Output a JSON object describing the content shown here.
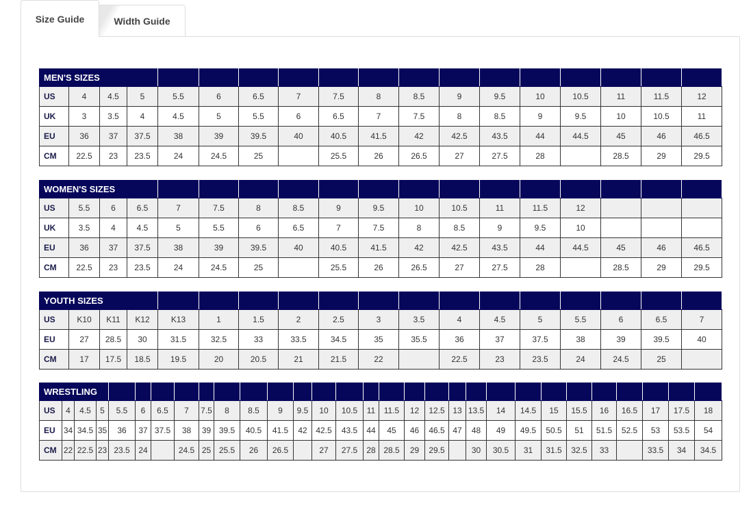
{
  "tabs": [
    {
      "label": "Size Guide",
      "active": true
    },
    {
      "label": "Width Guide",
      "active": false
    }
  ],
  "colors": {
    "header_bg": "#06065a",
    "stripe": "#efefef"
  },
  "tables": [
    {
      "title": "MEN'S SIZES",
      "title_span": 4,
      "rows": [
        {
          "label": "US",
          "values": [
            "4",
            "4.5",
            "5",
            "5.5",
            "6",
            "6.5",
            "7",
            "7.5",
            "8",
            "8.5",
            "9",
            "9.5",
            "10",
            "10.5",
            "11",
            "11.5",
            "12"
          ]
        },
        {
          "label": "UK",
          "values": [
            "3",
            "3.5",
            "4",
            "4.5",
            "5",
            "5.5",
            "6",
            "6.5",
            "7",
            "7.5",
            "8",
            "8.5",
            "9",
            "9.5",
            "10",
            "10.5",
            "11"
          ]
        },
        {
          "label": "EU",
          "values": [
            "36",
            "37",
            "37.5",
            "38",
            "39",
            "39.5",
            "40",
            "40.5",
            "41.5",
            "42",
            "42.5",
            "43.5",
            "44",
            "44.5",
            "45",
            "46",
            "46.5"
          ]
        },
        {
          "label": "CM",
          "values": [
            "22.5",
            "23",
            "23.5",
            "24",
            "24.5",
            "25",
            "",
            "25.5",
            "26",
            "26.5",
            "27",
            "27.5",
            "28",
            "",
            "28.5",
            "29",
            "29.5"
          ]
        }
      ]
    },
    {
      "title": "WOMEN'S SIZES",
      "title_span": 4,
      "rows": [
        {
          "label": "US",
          "values": [
            "5.5",
            "6",
            "6.5",
            "7",
            "7.5",
            "8",
            "8.5",
            "9",
            "9.5",
            "10",
            "10.5",
            "11",
            "11.5",
            "12",
            "",
            "",
            ""
          ]
        },
        {
          "label": "UK",
          "values": [
            "3.5",
            "4",
            "4.5",
            "5",
            "5.5",
            "6",
            "6.5",
            "7",
            "7.5",
            "8",
            "8.5",
            "9",
            "9.5",
            "10",
            "",
            "",
            ""
          ]
        },
        {
          "label": "EU",
          "values": [
            "36",
            "37",
            "37.5",
            "38",
            "39",
            "39.5",
            "40",
            "40.5",
            "41.5",
            "42",
            "42.5",
            "43.5",
            "44",
            "44.5",
            "45",
            "46",
            "46.5"
          ]
        },
        {
          "label": "CM",
          "values": [
            "22.5",
            "23",
            "23.5",
            "24",
            "24.5",
            "25",
            "",
            "25.5",
            "26",
            "26.5",
            "27",
            "27.5",
            "28",
            "",
            "28.5",
            "29",
            "29.5"
          ]
        }
      ]
    },
    {
      "title": "YOUTH SIZES",
      "title_span": 4,
      "rows": [
        {
          "label": "US",
          "values": [
            "K10",
            "K11",
            "K12",
            "K13",
            "1",
            "1.5",
            "2",
            "2.5",
            "3",
            "3.5",
            "4",
            "4.5",
            "5",
            "5.5",
            "6",
            "6.5",
            "7"
          ]
        },
        {
          "label": "EU",
          "values": [
            "27",
            "28.5",
            "30",
            "31.5",
            "32.5",
            "33",
            "33.5",
            "34.5",
            "35",
            "35.5",
            "36",
            "37",
            "37.5",
            "38",
            "39",
            "39.5",
            "40"
          ]
        },
        {
          "label": "CM",
          "values": [
            "17",
            "17.5",
            "18.5",
            "19.5",
            "20",
            "20.5",
            "21",
            "21.5",
            "22",
            "",
            "22.5",
            "23",
            "23.5",
            "24",
            "24.5",
            "25",
            ""
          ]
        }
      ]
    },
    {
      "title": "WRESTLING",
      "title_span": 4,
      "rows": [
        {
          "label": "US",
          "values": [
            "4",
            "4.5",
            "5",
            "5.5",
            "6",
            "6.5",
            "7",
            "7.5",
            "8",
            "8.5",
            "9",
            "9.5",
            "10",
            "10.5",
            "11",
            "11.5",
            "12",
            "12.5",
            "13",
            "13.5",
            "14",
            "14.5",
            "15",
            "15.5",
            "16",
            "16.5",
            "17",
            "17.5",
            "18"
          ]
        },
        {
          "label": "EU",
          "values": [
            "34",
            "34.5",
            "35",
            "36",
            "37",
            "37.5",
            "38",
            "39",
            "39.5",
            "40.5",
            "41.5",
            "42",
            "42.5",
            "43.5",
            "44",
            "45",
            "46",
            "46.5",
            "47",
            "48",
            "49",
            "49.5",
            "50.5",
            "51",
            "51.5",
            "52.5",
            "53",
            "53.5",
            "54"
          ]
        },
        {
          "label": "CM",
          "values": [
            "22",
            "22.5",
            "23",
            "23.5",
            "24",
            "",
            "24.5",
            "25",
            "25.5",
            "26",
            "26.5",
            "",
            "27",
            "27.5",
            "28",
            "28.5",
            "29",
            "29.5",
            "",
            "30",
            "30.5",
            "31",
            "31.5",
            "32.5",
            "33",
            "",
            "33.5",
            "34",
            "34.5"
          ]
        }
      ]
    }
  ]
}
